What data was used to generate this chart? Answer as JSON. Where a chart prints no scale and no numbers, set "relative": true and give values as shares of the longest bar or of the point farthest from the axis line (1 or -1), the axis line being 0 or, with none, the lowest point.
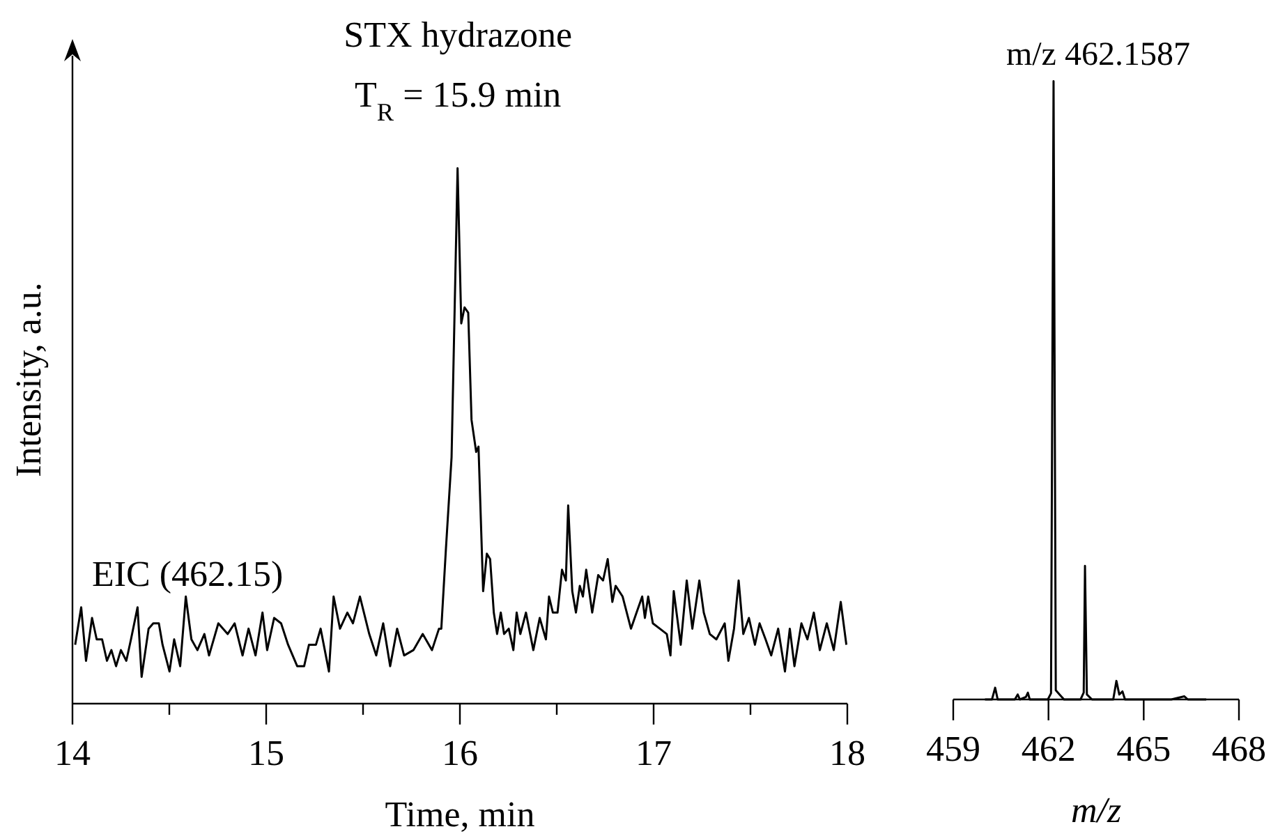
{
  "chart_data": [
    {
      "type": "line",
      "relative": true,
      "xlabel": "Time, min",
      "ylabel": "Intensity, a.u.",
      "xlim": [
        14,
        18
      ],
      "xticks": [
        14,
        {
          "value": 14.5,
          "label": null
        },
        15,
        {
          "value": 15.5,
          "label": null
        },
        16,
        {
          "value": 16.5,
          "label": null
        },
        17,
        {
          "value": 17.5,
          "label": null
        },
        18
      ],
      "tick_labels": "x",
      "annotations": [
        {
          "text": "STX hydrazone\nT$_{R}$ = 15.9 min",
          "x": 15.99,
          "y": 1
        }
      ],
      "series": [
        {
          "name": "EIC (462.15)",
          "color": "#000000",
          "x": [
            14.014,
            14.045,
            14.07,
            14.101,
            14.125,
            14.153,
            14.178,
            14.201,
            14.225,
            14.25,
            14.278,
            14.302,
            14.336,
            14.357,
            14.393,
            14.417,
            14.446,
            14.465,
            14.501,
            14.525,
            14.556,
            14.585,
            14.614,
            14.645,
            14.681,
            14.705,
            14.753,
            14.801,
            14.837,
            14.878,
            14.909,
            14.945,
            14.981,
            15.005,
            15.041,
            15.077,
            15.113,
            15.16,
            15.196,
            15.221,
            15.257,
            15.281,
            15.324,
            15.348,
            15.381,
            15.419,
            15.448,
            15.484,
            15.532,
            15.568,
            15.604,
            15.64,
            15.676,
            15.712,
            15.76,
            15.808,
            15.856,
            15.892,
            15.904,
            15.928,
            15.957,
            15.988,
            16.007,
            16.024,
            16.043,
            16.06,
            16.084,
            16.096,
            16.12,
            16.139,
            16.156,
            16.175,
            16.192,
            16.211,
            16.228,
            16.252,
            16.276,
            16.293,
            16.312,
            16.341,
            16.379,
            16.412,
            16.444,
            16.46,
            16.48,
            16.504,
            16.527,
            16.547,
            16.559,
            16.58,
            16.599,
            16.619,
            16.635,
            16.652,
            16.683,
            16.714,
            16.739,
            16.763,
            16.787,
            16.804,
            16.84,
            16.883,
            16.912,
            16.941,
            16.955,
            16.972,
            16.996,
            17.032,
            17.068,
            17.087,
            17.104,
            17.14,
            17.171,
            17.2,
            17.236,
            17.259,
            17.29,
            17.324,
            17.367,
            17.386,
            17.415,
            17.439,
            17.463,
            17.492,
            17.523,
            17.547,
            17.578,
            17.607,
            17.643,
            17.678,
            17.703,
            17.727,
            17.763,
            17.794,
            17.827,
            17.858,
            17.894,
            17.93,
            17.966,
            17.995
          ],
          "values": [
            0.11,
            0.18,
            0.08,
            0.16,
            0.12,
            0.12,
            0.08,
            0.1,
            0.07,
            0.1,
            0.08,
            0.12,
            0.18,
            0.05,
            0.14,
            0.15,
            0.15,
            0.11,
            0.06,
            0.12,
            0.07,
            0.2,
            0.12,
            0.1,
            0.13,
            0.09,
            0.15,
            0.13,
            0.15,
            0.09,
            0.14,
            0.09,
            0.17,
            0.1,
            0.16,
            0.15,
            0.11,
            0.07,
            0.07,
            0.11,
            0.11,
            0.14,
            0.06,
            0.2,
            0.14,
            0.17,
            0.15,
            0.2,
            0.13,
            0.09,
            0.15,
            0.07,
            0.14,
            0.09,
            0.1,
            0.13,
            0.1,
            0.14,
            0.14,
            0.29,
            0.46,
            1,
            0.71,
            0.74,
            0.73,
            0.53,
            0.47,
            0.48,
            0.21,
            0.28,
            0.27,
            0.17,
            0.13,
            0.17,
            0.13,
            0.14,
            0.1,
            0.17,
            0.13,
            0.17,
            0.1,
            0.16,
            0.12,
            0.2,
            0.17,
            0.17,
            0.25,
            0.23,
            0.37,
            0.21,
            0.17,
            0.22,
            0.2,
            0.25,
            0.17,
            0.24,
            0.23,
            0.27,
            0.19,
            0.22,
            0.2,
            0.14,
            0.17,
            0.2,
            0.16,
            0.2,
            0.15,
            0.14,
            0.13,
            0.09,
            0.21,
            0.11,
            0.23,
            0.14,
            0.23,
            0.17,
            0.13,
            0.12,
            0.15,
            0.08,
            0.14,
            0.23,
            0.13,
            0.16,
            0.11,
            0.15,
            0.12,
            0.09,
            0.14,
            0.06,
            0.14,
            0.07,
            0.15,
            0.12,
            0.17,
            0.1,
            0.15,
            0.1,
            0.19,
            0.11
          ]
        }
      ]
    },
    {
      "type": "line",
      "relative": true,
      "xlabel": "m/z",
      "xlim": [
        459,
        468
      ],
      "xticks": [
        459,
        462,
        465,
        468
      ],
      "tick_labels": "x",
      "annotations": [
        {
          "text": "m/z 462.1587",
          "x": 462.16,
          "y": 1
        }
      ],
      "series": [
        {
          "color": "#000000",
          "x": [
            460.0,
            460.22,
            460.32,
            460.4,
            460.94,
            461.03,
            461.1,
            461.29,
            461.35,
            461.41,
            461.98,
            462.08,
            462.16,
            462.23,
            462.35,
            462.49,
            463.01,
            463.11,
            463.15,
            463.21,
            463.37,
            464.04,
            464.14,
            464.23,
            464.33,
            464.41,
            464.99,
            465.87,
            466.28,
            466.39,
            466.97
          ],
          "values": [
            0,
            0,
            0.019,
            0,
            0,
            0.008,
            0,
            0.004,
            0.011,
            0,
            0,
            0.01,
            1,
            0.015,
            0.008,
            0,
            0,
            0.011,
            0.216,
            0.008,
            0,
            0,
            0.03,
            0.008,
            0.013,
            0,
            0,
            0,
            0.005,
            0,
            0
          ]
        }
      ]
    }
  ]
}
